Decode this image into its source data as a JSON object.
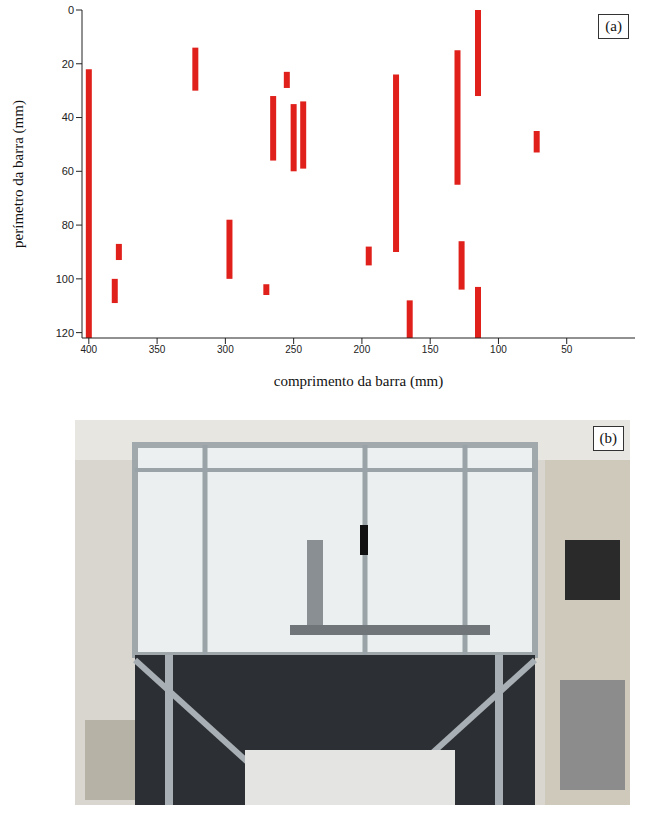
{
  "chart_data": {
    "type": "segments",
    "panel_label": "(a)",
    "x_label": "comprimento da barra (mm)",
    "y_label": "perímetro da barra (mm)",
    "color": "#e0201b",
    "x": [
      400,
      381,
      378,
      322,
      297,
      270,
      265,
      255,
      250,
      243,
      195,
      175,
      165,
      130,
      127,
      115,
      115,
      72
    ],
    "y_start": [
      22,
      100,
      87,
      14,
      78,
      102,
      32,
      23,
      35,
      34,
      88,
      24,
      108,
      15,
      86,
      0,
      103,
      45
    ],
    "y_end": [
      122,
      109,
      93,
      30,
      100,
      106,
      56,
      29,
      60,
      59,
      95,
      90,
      122,
      65,
      104,
      32,
      122,
      53
    ],
    "xlim": [
      0,
      405
    ],
    "ylim": [
      0,
      122
    ],
    "xticks": [
      400,
      350,
      300,
      250,
      200,
      150,
      100,
      50
    ],
    "yticks": [
      0,
      20,
      40,
      60,
      80,
      100,
      120
    ],
    "grid": false
  },
  "photo": {
    "panel_label": "(b)"
  }
}
